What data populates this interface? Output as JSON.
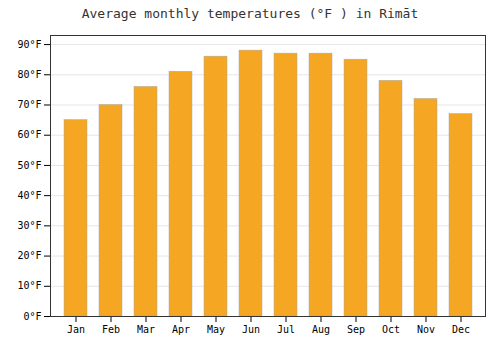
{
  "chart_data": {
    "type": "bar",
    "title": "Average monthly temperatures (°F ) in Rimāt",
    "categories": [
      "Jan",
      "Feb",
      "Mar",
      "Apr",
      "May",
      "Jun",
      "Jul",
      "Aug",
      "Sep",
      "Oct",
      "Nov",
      "Dec"
    ],
    "values": [
      65,
      70,
      76,
      81,
      86,
      88,
      87,
      87,
      85,
      78,
      72,
      67
    ],
    "color": "#F5A623",
    "ylim": [
      0,
      93
    ],
    "yticks": [
      {
        "value": 0,
        "label": "0°F"
      },
      {
        "value": 10,
        "label": "10°F"
      },
      {
        "value": 20,
        "label": "20°F"
      },
      {
        "value": 30,
        "label": "30°F"
      },
      {
        "value": 40,
        "label": "40°F"
      },
      {
        "value": 50,
        "label": "50°F"
      },
      {
        "value": 60,
        "label": "60°F"
      },
      {
        "value": 70,
        "label": "70°F"
      },
      {
        "value": 80,
        "label": "80°F"
      },
      {
        "value": 90,
        "label": "90°F"
      }
    ],
    "grid": true
  }
}
